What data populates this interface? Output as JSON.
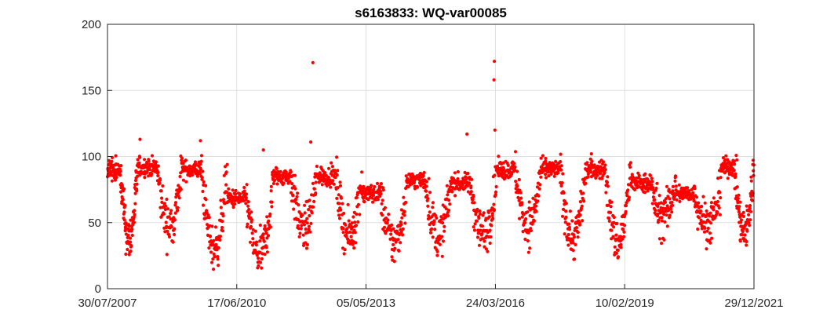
{
  "chart_data": {
    "type": "scatter",
    "title": "s6163833: WQ-var00085",
    "xlabel": "",
    "ylabel": "",
    "xlim": [
      "30/07/2007",
      "29/12/2021"
    ],
    "ylim": [
      0,
      200
    ],
    "x_ticks": [
      "30/07/2007",
      "17/06/2010",
      "05/05/2013",
      "24/03/2016",
      "10/02/2019",
      "29/12/2021"
    ],
    "y_ticks": [
      0,
      50,
      100,
      150,
      200
    ],
    "grid": true,
    "legend": "none",
    "marker_color": "#ff0000",
    "outliers": [
      {
        "x": "27/02/2012",
        "y": 171
      },
      {
        "x": "15/03/2016",
        "y": 172
      },
      {
        "x": "12/03/2016",
        "y": 158
      },
      {
        "x": "20/03/2016",
        "y": 120
      },
      {
        "x": "05/08/2015",
        "y": 117
      },
      {
        "x": "20/04/2008",
        "y": 113
      },
      {
        "x": "25/08/2009",
        "y": 112
      },
      {
        "x": "10/02/2012",
        "y": 111
      },
      {
        "x": "20/01/2011",
        "y": 105
      },
      {
        "x": "15/05/2018",
        "y": 102
      }
    ],
    "seasonal_cycles": [
      {
        "start": "30/07/2007",
        "high": 90,
        "low": 38
      },
      {
        "start": "01/04/2008",
        "high": 92,
        "low": 48
      },
      {
        "start": "01/04/2009",
        "high": 90,
        "low": 30
      },
      {
        "start": "01/04/2010",
        "high": 68,
        "low": 25
      },
      {
        "start": "01/04/2011",
        "high": 85,
        "low": 45
      },
      {
        "start": "01/04/2012",
        "high": 85,
        "low": 40
      },
      {
        "start": "01/04/2013",
        "high": 72,
        "low": 35
      },
      {
        "start": "01/04/2014",
        "high": 82,
        "low": 40
      },
      {
        "start": "01/04/2015",
        "high": 80,
        "low": 42
      },
      {
        "start": "01/04/2016",
        "high": 90,
        "low": 48
      },
      {
        "start": "01/04/2017",
        "high": 90,
        "low": 38
      },
      {
        "start": "01/04/2018",
        "high": 90,
        "low": 35
      },
      {
        "start": "01/04/2019",
        "high": 80,
        "low": 55
      },
      {
        "start": "01/04/2020",
        "high": 72,
        "low": 50
      },
      {
        "start": "01/04/2021",
        "high": 92,
        "low": 42
      }
    ]
  }
}
